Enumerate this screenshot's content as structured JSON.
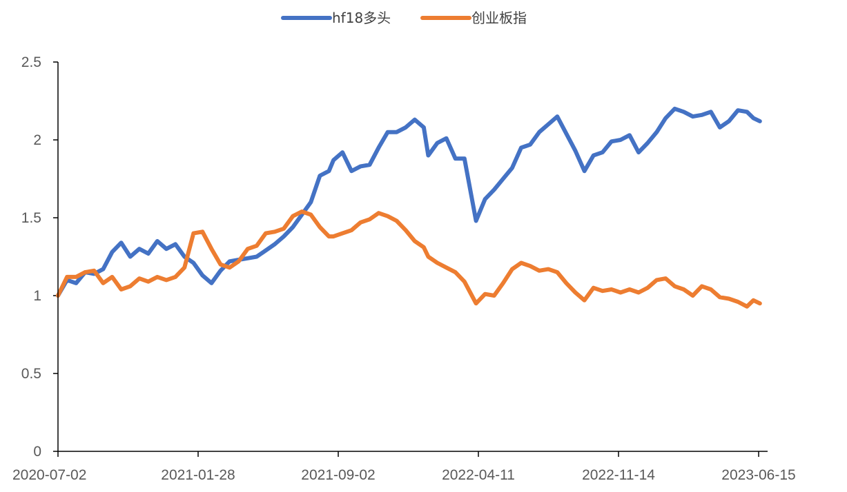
{
  "chart_data": {
    "type": "line",
    "title": "",
    "xlabel": "",
    "ylabel": "",
    "ylim": [
      0,
      2.5
    ],
    "yticks": [
      0,
      0.5,
      1,
      1.5,
      2,
      2.5
    ],
    "ytick_labels": [
      "0",
      "0.5",
      "1",
      "1.5",
      "2",
      "2.5"
    ],
    "xlim": [
      "2020-07-02",
      "2023-07-07"
    ],
    "xtick_labels": [
      "2020-07-02",
      "2021-01-28",
      "2021-09-02",
      "2022-04-11",
      "2022-11-14",
      "2023-06-15"
    ],
    "grid": false,
    "legend": "top-center",
    "series": [
      {
        "name": "hf18多头",
        "color": "#4472C4",
        "points": [
          [
            "2020-07-02",
            1.0
          ],
          [
            "2020-07-16",
            1.1
          ],
          [
            "2020-07-30",
            1.08
          ],
          [
            "2020-08-13",
            1.15
          ],
          [
            "2020-08-27",
            1.14
          ],
          [
            "2020-09-10",
            1.17
          ],
          [
            "2020-09-24",
            1.28
          ],
          [
            "2020-10-08",
            1.34
          ],
          [
            "2020-10-22",
            1.25
          ],
          [
            "2020-11-05",
            1.3
          ],
          [
            "2020-11-19",
            1.27
          ],
          [
            "2020-12-03",
            1.35
          ],
          [
            "2020-12-17",
            1.3
          ],
          [
            "2020-12-31",
            1.33
          ],
          [
            "2021-01-14",
            1.25
          ],
          [
            "2021-01-28",
            1.21
          ],
          [
            "2021-02-11",
            1.13
          ],
          [
            "2021-02-25",
            1.08
          ],
          [
            "2021-03-11",
            1.16
          ],
          [
            "2021-03-25",
            1.22
          ],
          [
            "2021-04-08",
            1.23
          ],
          [
            "2021-04-22",
            1.24
          ],
          [
            "2021-05-06",
            1.25
          ],
          [
            "2021-05-20",
            1.29
          ],
          [
            "2021-06-03",
            1.33
          ],
          [
            "2021-06-17",
            1.38
          ],
          [
            "2021-07-01",
            1.44
          ],
          [
            "2021-07-15",
            1.52
          ],
          [
            "2021-07-29",
            1.6
          ],
          [
            "2021-08-12",
            1.77
          ],
          [
            "2021-08-26",
            1.8
          ],
          [
            "2021-09-02",
            1.87
          ],
          [
            "2021-09-16",
            1.92
          ],
          [
            "2021-09-30",
            1.8
          ],
          [
            "2021-10-14",
            1.83
          ],
          [
            "2021-10-28",
            1.84
          ],
          [
            "2021-11-11",
            1.95
          ],
          [
            "2021-11-25",
            2.05
          ],
          [
            "2021-12-09",
            2.05
          ],
          [
            "2021-12-23",
            2.08
          ],
          [
            "2022-01-06",
            2.13
          ],
          [
            "2022-01-20",
            2.08
          ],
          [
            "2022-01-27",
            1.9
          ],
          [
            "2022-02-10",
            1.98
          ],
          [
            "2022-02-24",
            2.01
          ],
          [
            "2022-03-10",
            1.88
          ],
          [
            "2022-03-24",
            1.88
          ],
          [
            "2022-04-11",
            1.48
          ],
          [
            "2022-04-25",
            1.62
          ],
          [
            "2022-05-09",
            1.68
          ],
          [
            "2022-05-23",
            1.75
          ],
          [
            "2022-06-06",
            1.82
          ],
          [
            "2022-06-20",
            1.95
          ],
          [
            "2022-07-04",
            1.97
          ],
          [
            "2022-07-18",
            2.05
          ],
          [
            "2022-08-01",
            2.1
          ],
          [
            "2022-08-15",
            2.15
          ],
          [
            "2022-08-29",
            2.04
          ],
          [
            "2022-09-12",
            1.93
          ],
          [
            "2022-09-26",
            1.8
          ],
          [
            "2022-10-10",
            1.9
          ],
          [
            "2022-10-24",
            1.92
          ],
          [
            "2022-11-07",
            1.99
          ],
          [
            "2022-11-21",
            2.0
          ],
          [
            "2022-12-05",
            2.03
          ],
          [
            "2022-12-19",
            1.92
          ],
          [
            "2023-01-02",
            1.98
          ],
          [
            "2023-01-16",
            2.05
          ],
          [
            "2023-01-30",
            2.14
          ],
          [
            "2023-02-13",
            2.2
          ],
          [
            "2023-02-27",
            2.18
          ],
          [
            "2023-03-13",
            2.15
          ],
          [
            "2023-03-27",
            2.16
          ],
          [
            "2023-04-10",
            2.18
          ],
          [
            "2023-04-24",
            2.08
          ],
          [
            "2023-05-08",
            2.12
          ],
          [
            "2023-05-22",
            2.19
          ],
          [
            "2023-06-05",
            2.18
          ],
          [
            "2023-06-15",
            2.14
          ],
          [
            "2023-06-25",
            2.12
          ]
        ]
      },
      {
        "name": "创业板指",
        "color": "#ED7D31",
        "points": [
          [
            "2020-07-02",
            1.0
          ],
          [
            "2020-07-16",
            1.12
          ],
          [
            "2020-07-30",
            1.12
          ],
          [
            "2020-08-13",
            1.15
          ],
          [
            "2020-08-27",
            1.16
          ],
          [
            "2020-09-10",
            1.08
          ],
          [
            "2020-09-24",
            1.12
          ],
          [
            "2020-10-08",
            1.04
          ],
          [
            "2020-10-22",
            1.06
          ],
          [
            "2020-11-05",
            1.11
          ],
          [
            "2020-11-19",
            1.09
          ],
          [
            "2020-12-03",
            1.12
          ],
          [
            "2020-12-17",
            1.1
          ],
          [
            "2020-12-31",
            1.12
          ],
          [
            "2021-01-14",
            1.18
          ],
          [
            "2021-01-28",
            1.4
          ],
          [
            "2021-02-11",
            1.41
          ],
          [
            "2021-02-25",
            1.3
          ],
          [
            "2021-03-11",
            1.2
          ],
          [
            "2021-03-25",
            1.18
          ],
          [
            "2021-04-08",
            1.22
          ],
          [
            "2021-04-22",
            1.3
          ],
          [
            "2021-05-06",
            1.32
          ],
          [
            "2021-05-20",
            1.4
          ],
          [
            "2021-06-03",
            1.41
          ],
          [
            "2021-06-17",
            1.43
          ],
          [
            "2021-07-01",
            1.51
          ],
          [
            "2021-07-15",
            1.54
          ],
          [
            "2021-07-29",
            1.52
          ],
          [
            "2021-08-12",
            1.44
          ],
          [
            "2021-08-26",
            1.38
          ],
          [
            "2021-09-02",
            1.38
          ],
          [
            "2021-09-16",
            1.4
          ],
          [
            "2021-09-30",
            1.42
          ],
          [
            "2021-10-14",
            1.47
          ],
          [
            "2021-10-28",
            1.49
          ],
          [
            "2021-11-11",
            1.53
          ],
          [
            "2021-11-25",
            1.51
          ],
          [
            "2021-12-09",
            1.48
          ],
          [
            "2021-12-23",
            1.42
          ],
          [
            "2022-01-06",
            1.35
          ],
          [
            "2022-01-20",
            1.31
          ],
          [
            "2022-01-27",
            1.25
          ],
          [
            "2022-02-10",
            1.21
          ],
          [
            "2022-02-24",
            1.18
          ],
          [
            "2022-03-10",
            1.15
          ],
          [
            "2022-03-24",
            1.09
          ],
          [
            "2022-04-11",
            0.95
          ],
          [
            "2022-04-25",
            1.01
          ],
          [
            "2022-05-09",
            1.0
          ],
          [
            "2022-05-23",
            1.08
          ],
          [
            "2022-06-06",
            1.17
          ],
          [
            "2022-06-20",
            1.21
          ],
          [
            "2022-07-04",
            1.19
          ],
          [
            "2022-07-18",
            1.16
          ],
          [
            "2022-08-01",
            1.17
          ],
          [
            "2022-08-15",
            1.15
          ],
          [
            "2022-08-29",
            1.08
          ],
          [
            "2022-09-12",
            1.02
          ],
          [
            "2022-09-26",
            0.97
          ],
          [
            "2022-10-10",
            1.05
          ],
          [
            "2022-10-24",
            1.03
          ],
          [
            "2022-11-07",
            1.04
          ],
          [
            "2022-11-21",
            1.02
          ],
          [
            "2022-12-05",
            1.04
          ],
          [
            "2022-12-19",
            1.02
          ],
          [
            "2023-01-02",
            1.05
          ],
          [
            "2023-01-16",
            1.1
          ],
          [
            "2023-01-30",
            1.11
          ],
          [
            "2023-02-13",
            1.06
          ],
          [
            "2023-02-27",
            1.04
          ],
          [
            "2023-03-13",
            1.0
          ],
          [
            "2023-03-27",
            1.06
          ],
          [
            "2023-04-10",
            1.04
          ],
          [
            "2023-04-24",
            0.99
          ],
          [
            "2023-05-08",
            0.98
          ],
          [
            "2023-05-22",
            0.96
          ],
          [
            "2023-06-05",
            0.93
          ],
          [
            "2023-06-15",
            0.97
          ],
          [
            "2023-06-25",
            0.95
          ]
        ]
      }
    ]
  }
}
